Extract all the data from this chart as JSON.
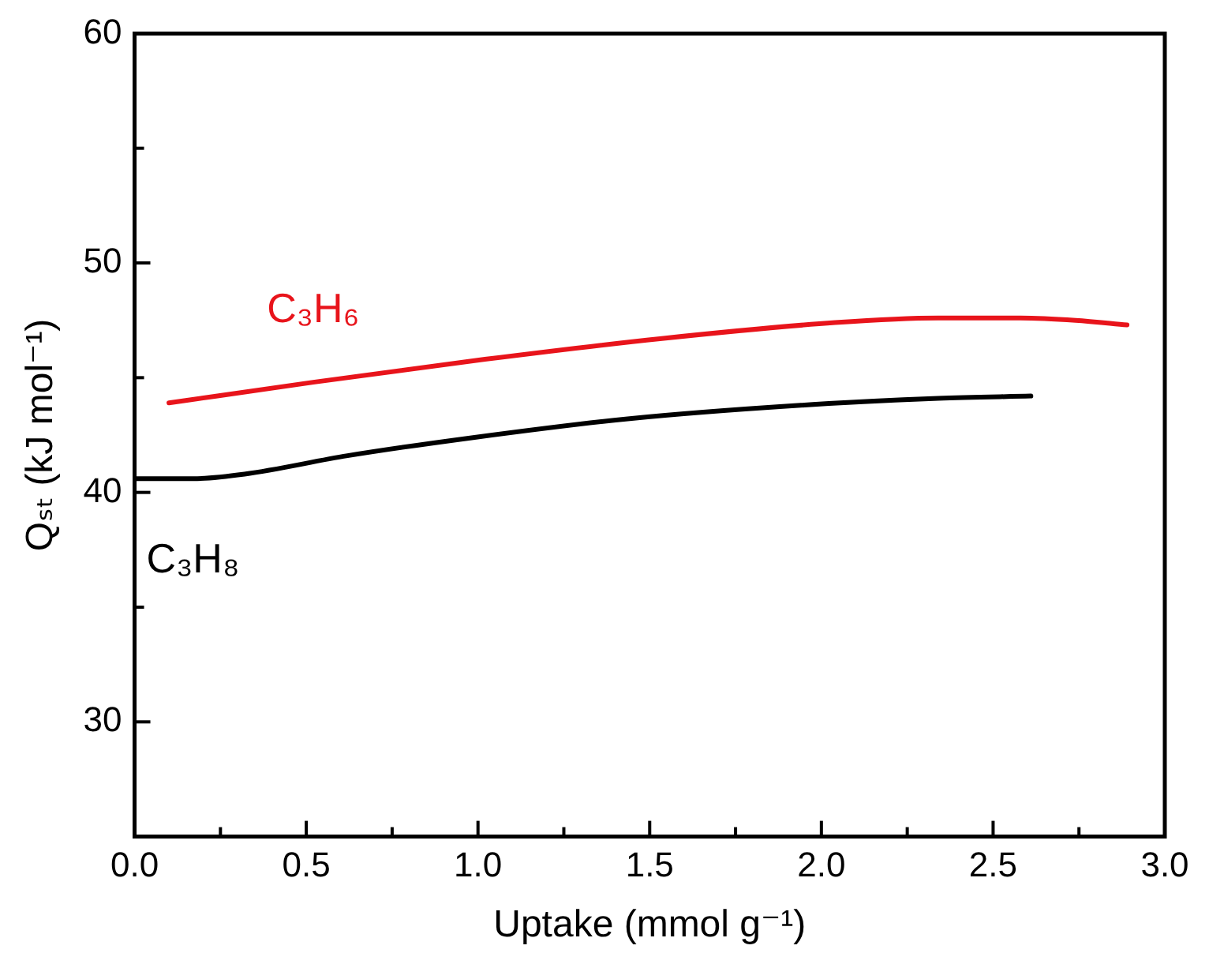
{
  "chart_data": {
    "type": "line",
    "xlabel": "Uptake (mmol g⁻¹)",
    "ylabel": "Qₛₜ (kJ mol⁻¹)",
    "xlim": [
      0,
      3
    ],
    "xticks": [
      {
        "value": 0,
        "label": "0.0"
      },
      {
        "value": 0.25,
        "label": null
      },
      {
        "value": 0.5,
        "label": "0.5"
      },
      {
        "value": 0.75,
        "label": null
      },
      {
        "value": 1,
        "label": "1.0"
      },
      {
        "value": 1.25,
        "label": null
      },
      {
        "value": 1.5,
        "label": "1.5"
      },
      {
        "value": 1.75,
        "label": null
      },
      {
        "value": 2,
        "label": "2.0"
      },
      {
        "value": 2.25,
        "label": null
      },
      {
        "value": 2.5,
        "label": "2.5"
      },
      {
        "value": 2.75,
        "label": null
      },
      {
        "value": 3,
        "label": "3.0"
      }
    ],
    "ylim": [
      25,
      60
    ],
    "yticks": [
      30,
      {
        "value": 35,
        "label": null
      },
      40,
      {
        "value": 45,
        "label": null
      },
      50,
      {
        "value": 55,
        "label": null
      },
      60
    ],
    "grid": false,
    "legend": false,
    "marker": "none",
    "line_style": "solid",
    "series": [
      {
        "name": "C₃H₆",
        "color": "#e8141b",
        "x": [
          0.1,
          0.52,
          1.02,
          1.53,
          2.04,
          2.34,
          2.58,
          2.74,
          2.89
        ],
        "values": [
          43.9,
          44.8,
          45.8,
          46.7,
          47.4,
          47.6,
          47.6,
          47.5,
          47.3
        ]
      },
      {
        "name": "C₃H₈",
        "color": "#000000",
        "x": [
          0.0,
          0.17,
          0.32,
          0.62,
          0.99,
          1.43,
          1.94,
          2.34,
          2.61
        ],
        "values": [
          40.6,
          40.6,
          40.8,
          41.6,
          42.4,
          43.2,
          43.8,
          44.1,
          44.2
        ]
      }
    ]
  }
}
